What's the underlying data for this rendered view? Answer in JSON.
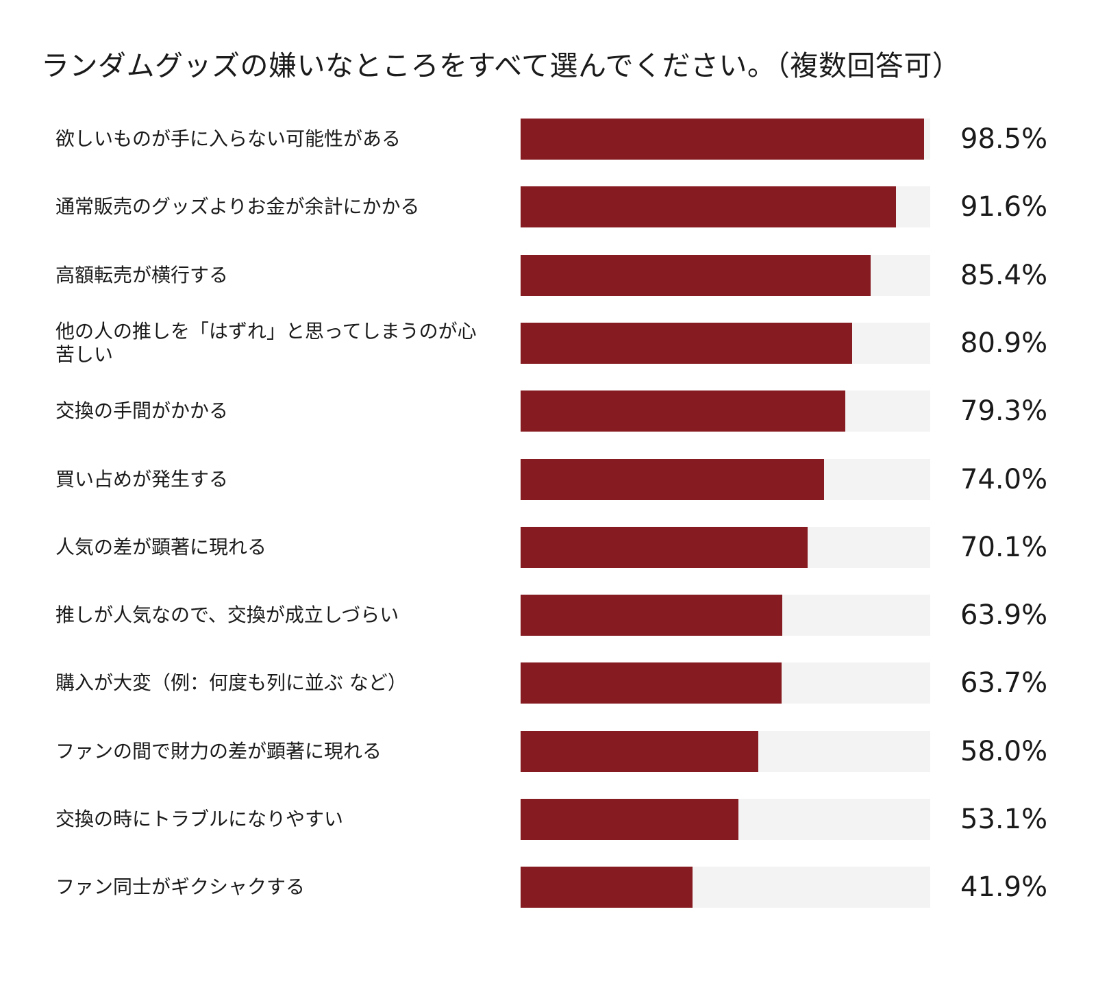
{
  "chart_data": {
    "type": "bar",
    "orientation": "horizontal",
    "title": "ランダムグッズの嫌いなところをすべて選んでください。（複数回答可）",
    "categories": [
      "欲しいものが手に入らない可能性がある",
      "通常販売のグッズよりお金が余計にかかる",
      "高額転売が横行する",
      "他の人の推しを「はずれ」と思ってしまうのが心苦しい",
      "交換の手間がかかる",
      "買い占めが発生する",
      "人気の差が顕著に現れる",
      "推しが人気なので、交換が成立しづらい",
      "購入が大変（例：何度も列に並ぶ など）",
      "ファンの間で財力の差が顕著に現れる",
      "交換の時にトラブルになりやすい",
      "ファン同士がギクシャクする"
    ],
    "values": [
      98.5,
      91.6,
      85.4,
      80.9,
      79.3,
      74.0,
      70.1,
      63.9,
      63.7,
      58.0,
      53.1,
      41.9
    ],
    "value_labels": [
      "98.5%",
      "91.6%",
      "85.4%",
      "80.9%",
      "79.3%",
      "74.0%",
      "70.1%",
      "63.9%",
      "63.7%",
      "58.0%",
      "53.1%",
      "41.9%"
    ],
    "xlim": [
      0,
      100
    ],
    "grid": false,
    "legend": "none",
    "bar_color": "#861c21",
    "track_color": "#f3f3f3"
  }
}
